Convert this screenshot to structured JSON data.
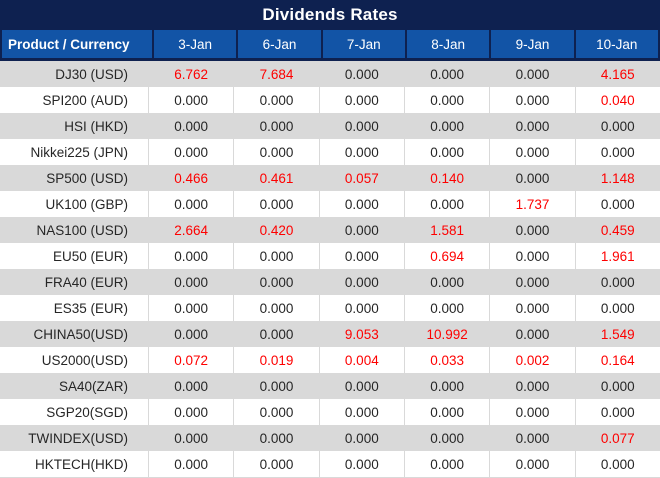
{
  "title": "Dividends Rates",
  "colors": {
    "title_bg": "#0e2150",
    "header_bg": "#1254a6",
    "header_text": "#ffffff",
    "row_bg": "#ffffff",
    "row_alt_bg": "#d9d9d9",
    "grid": "#d9d9d9",
    "value_text": "#262626",
    "nonzero_value_text": "#fe0000"
  },
  "table": {
    "product_header": "Product / Currency",
    "date_headers": [
      "3-Jan",
      "6-Jan",
      "7-Jan",
      "8-Jan",
      "9-Jan",
      "10-Jan"
    ],
    "rows": [
      {
        "product": "DJ30 (USD)",
        "values": [
          "6.762",
          "7.684",
          "0.000",
          "0.000",
          "0.000",
          "4.165"
        ]
      },
      {
        "product": "SPI200 (AUD)",
        "values": [
          "0.000",
          "0.000",
          "0.000",
          "0.000",
          "0.000",
          "0.040"
        ]
      },
      {
        "product": "HSI (HKD)",
        "values": [
          "0.000",
          "0.000",
          "0.000",
          "0.000",
          "0.000",
          "0.000"
        ]
      },
      {
        "product": "Nikkei225 (JPN)",
        "values": [
          "0.000",
          "0.000",
          "0.000",
          "0.000",
          "0.000",
          "0.000"
        ]
      },
      {
        "product": "SP500 (USD)",
        "values": [
          "0.466",
          "0.461",
          "0.057",
          "0.140",
          "0.000",
          "1.148"
        ]
      },
      {
        "product": "UK100 (GBP)",
        "values": [
          "0.000",
          "0.000",
          "0.000",
          "0.000",
          "1.737",
          "0.000"
        ]
      },
      {
        "product": "NAS100 (USD)",
        "values": [
          "2.664",
          "0.420",
          "0.000",
          "1.581",
          "0.000",
          "0.459"
        ]
      },
      {
        "product": "EU50 (EUR)",
        "values": [
          "0.000",
          "0.000",
          "0.000",
          "0.694",
          "0.000",
          "1.961"
        ]
      },
      {
        "product": "FRA40 (EUR)",
        "values": [
          "0.000",
          "0.000",
          "0.000",
          "0.000",
          "0.000",
          "0.000"
        ]
      },
      {
        "product": "ES35 (EUR)",
        "values": [
          "0.000",
          "0.000",
          "0.000",
          "0.000",
          "0.000",
          "0.000"
        ]
      },
      {
        "product": "CHINA50(USD)",
        "values": [
          "0.000",
          "0.000",
          "9.053",
          "10.992",
          "0.000",
          "1.549"
        ]
      },
      {
        "product": "US2000(USD)",
        "values": [
          "0.072",
          "0.019",
          "0.004",
          "0.033",
          "0.002",
          "0.164"
        ]
      },
      {
        "product": "SA40(ZAR)",
        "values": [
          "0.000",
          "0.000",
          "0.000",
          "0.000",
          "0.000",
          "0.000"
        ]
      },
      {
        "product": "SGP20(SGD)",
        "values": [
          "0.000",
          "0.000",
          "0.000",
          "0.000",
          "0.000",
          "0.000"
        ]
      },
      {
        "product": "TWINDEX(USD)",
        "values": [
          "0.000",
          "0.000",
          "0.000",
          "0.000",
          "0.000",
          "0.077"
        ]
      },
      {
        "product": "HKTECH(HKD)",
        "values": [
          "0.000",
          "0.000",
          "0.000",
          "0.000",
          "0.000",
          "0.000"
        ]
      }
    ]
  }
}
